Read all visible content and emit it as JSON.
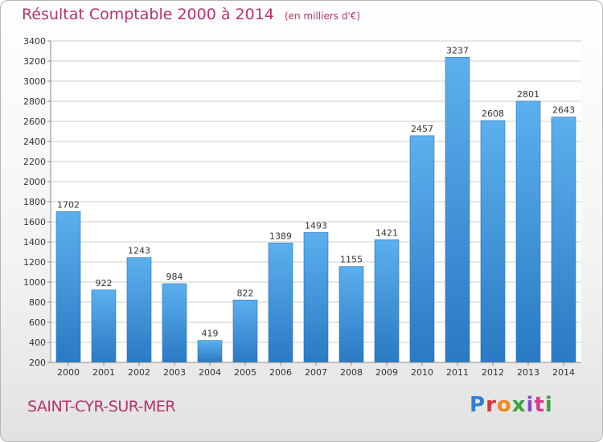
{
  "chart": {
    "title": "Résultat Comptable 2000 à 2014",
    "unit": "(en milliers d'€)",
    "location": "SAINT-CYR-SUR-MER",
    "brand": "Proxiti",
    "brand_colors": [
      "#2f7fd1",
      "#e2333b",
      "#f08a1d",
      "#3ba33b",
      "#8a4fc7",
      "#d83a8c",
      "#3ba33b"
    ]
  },
  "chart_data": {
    "type": "bar",
    "title": "Résultat Comptable 2000 à 2014",
    "categories": [
      "2000",
      "2001",
      "2002",
      "2003",
      "2004",
      "2005",
      "2006",
      "2007",
      "2008",
      "2009",
      "2010",
      "2011",
      "2012",
      "2013",
      "2014"
    ],
    "values": [
      1702,
      922,
      1243,
      984,
      419,
      822,
      1389,
      1493,
      1155,
      1421,
      2457,
      3237,
      2608,
      2801,
      2643
    ],
    "ylim": [
      200,
      3400
    ],
    "yticks": [
      200,
      400,
      600,
      800,
      1000,
      1200,
      1400,
      1600,
      1800,
      2000,
      2200,
      2400,
      2600,
      2800,
      3000,
      3200,
      3400
    ],
    "grid": true,
    "bar_color": "#4a9fe0",
    "grid_color": "#cfcfcf"
  }
}
